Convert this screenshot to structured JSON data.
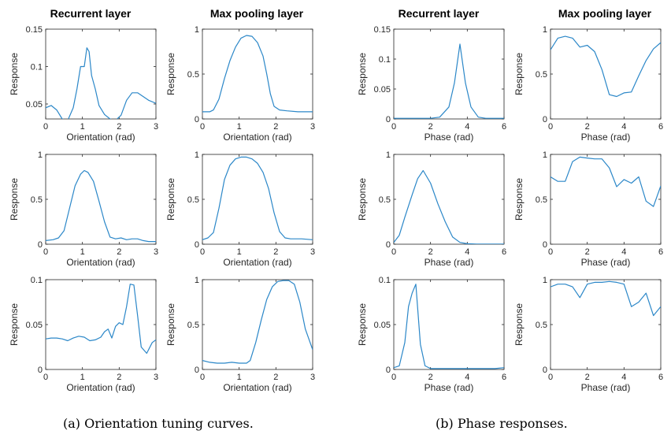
{
  "column_titles": [
    "Recurrent layer",
    "Max pooling layer",
    "Recurrent layer",
    "Max pooling layer"
  ],
  "captions": {
    "a": "(a) Orientation tuning curves.",
    "b": "(b) Phase responses."
  },
  "line_color": "#2b87c8",
  "chart_data": [
    {
      "id": "a-r1-c1",
      "type": "line",
      "xlabel": "Orientation (rad)",
      "ylabel": "Response",
      "xlim": [
        0,
        3
      ],
      "ylim": [
        0.03,
        0.15
      ],
      "xticks": [
        0,
        1,
        2,
        3
      ],
      "yticks": [
        0.05,
        0.1,
        0.15
      ],
      "yticklabels": [
        "0.05",
        "0.1",
        "0.15"
      ],
      "x": [
        0,
        0.15,
        0.3,
        0.45,
        0.6,
        0.75,
        0.85,
        0.95,
        1.05,
        1.12,
        1.18,
        1.25,
        1.35,
        1.45,
        1.6,
        1.75,
        1.9,
        2.05,
        2.2,
        2.35,
        2.5,
        2.65,
        2.8,
        3.0
      ],
      "y": [
        0.045,
        0.048,
        0.042,
        0.03,
        0.028,
        0.045,
        0.07,
        0.1,
        0.1,
        0.125,
        0.12,
        0.088,
        0.07,
        0.048,
        0.036,
        0.03,
        0.028,
        0.035,
        0.055,
        0.065,
        0.065,
        0.06,
        0.055,
        0.051
      ]
    },
    {
      "id": "a-r1-c2",
      "type": "line",
      "xlabel": "Orientation (rad)",
      "ylabel": "Response",
      "xlim": [
        0,
        3
      ],
      "ylim": [
        0,
        1
      ],
      "xticks": [
        0,
        1,
        2,
        3
      ],
      "yticks": [
        0,
        0.5,
        1
      ],
      "yticklabels": [
        "0",
        "0.5",
        "1"
      ],
      "x": [
        0,
        0.2,
        0.3,
        0.45,
        0.6,
        0.75,
        0.9,
        1.05,
        1.2,
        1.35,
        1.5,
        1.65,
        1.75,
        1.85,
        1.95,
        2.1,
        2.3,
        2.6,
        3.0
      ],
      "y": [
        0.08,
        0.08,
        0.1,
        0.22,
        0.45,
        0.65,
        0.8,
        0.9,
        0.93,
        0.92,
        0.85,
        0.7,
        0.5,
        0.28,
        0.14,
        0.1,
        0.09,
        0.08,
        0.08
      ]
    },
    {
      "id": "b-r1-c1",
      "type": "line",
      "xlabel": "Phase (rad)",
      "ylabel": "Response",
      "xlim": [
        0,
        6
      ],
      "ylim": [
        0,
        0.15
      ],
      "xticks": [
        0,
        2,
        4,
        6
      ],
      "yticks": [
        0,
        0.05,
        0.1,
        0.15
      ],
      "yticklabels": [
        "0",
        "0.05",
        "0.1",
        "0.15"
      ],
      "x": [
        0,
        0.5,
        1,
        1.5,
        2,
        2.5,
        3,
        3.3,
        3.6,
        3.9,
        4.2,
        4.6,
        5,
        5.5,
        6
      ],
      "y": [
        0.001,
        0.001,
        0.001,
        0.001,
        0.001,
        0.003,
        0.02,
        0.06,
        0.125,
        0.06,
        0.02,
        0.003,
        0.001,
        0.001,
        0.001
      ]
    },
    {
      "id": "b-r1-c2",
      "type": "line",
      "xlabel": "Phase (rad)",
      "ylabel": "Response",
      "xlim": [
        0,
        6
      ],
      "ylim": [
        0,
        1
      ],
      "xticks": [
        0,
        2,
        4,
        6
      ],
      "yticks": [
        0,
        0.5,
        1
      ],
      "yticklabels": [
        "0",
        "0.5",
        "1"
      ],
      "x": [
        0,
        0.4,
        0.8,
        1.2,
        1.6,
        2.0,
        2.4,
        2.8,
        3.2,
        3.6,
        4.0,
        4.4,
        4.8,
        5.2,
        5.6,
        6.0
      ],
      "y": [
        0.77,
        0.9,
        0.92,
        0.9,
        0.8,
        0.82,
        0.75,
        0.55,
        0.27,
        0.25,
        0.29,
        0.3,
        0.48,
        0.65,
        0.78,
        0.85
      ]
    },
    {
      "id": "a-r2-c1",
      "type": "line",
      "xlabel": "Orientation (rad)",
      "ylabel": "Response",
      "xlim": [
        0,
        3
      ],
      "ylim": [
        0,
        1
      ],
      "xticks": [
        0,
        1,
        2,
        3
      ],
      "yticks": [
        0,
        0.5,
        1
      ],
      "yticklabels": [
        "0",
        "0.5",
        "1"
      ],
      "x": [
        0,
        0.2,
        0.35,
        0.5,
        0.65,
        0.8,
        0.95,
        1.05,
        1.15,
        1.3,
        1.45,
        1.6,
        1.75,
        1.9,
        2.05,
        2.2,
        2.35,
        2.5,
        2.65,
        2.8,
        3.0
      ],
      "y": [
        0.04,
        0.05,
        0.07,
        0.15,
        0.4,
        0.65,
        0.78,
        0.82,
        0.8,
        0.7,
        0.48,
        0.25,
        0.08,
        0.06,
        0.07,
        0.05,
        0.06,
        0.06,
        0.04,
        0.03,
        0.03
      ]
    },
    {
      "id": "a-r2-c2",
      "type": "line",
      "xlabel": "Orientation (rad)",
      "ylabel": "Response",
      "xlim": [
        0,
        3
      ],
      "ylim": [
        0,
        1
      ],
      "xticks": [
        0,
        1,
        2,
        3
      ],
      "yticks": [
        0,
        0.5,
        1
      ],
      "yticklabels": [
        "0",
        "0.5",
        "1"
      ],
      "x": [
        0,
        0.15,
        0.3,
        0.45,
        0.6,
        0.75,
        0.9,
        1.05,
        1.2,
        1.35,
        1.5,
        1.65,
        1.8,
        1.95,
        2.1,
        2.25,
        2.4,
        2.7,
        3.0
      ],
      "y": [
        0.05,
        0.07,
        0.13,
        0.4,
        0.72,
        0.88,
        0.95,
        0.97,
        0.97,
        0.95,
        0.9,
        0.8,
        0.62,
        0.35,
        0.14,
        0.07,
        0.06,
        0.06,
        0.05
      ]
    },
    {
      "id": "b-r2-c1",
      "type": "line",
      "xlabel": "Phase (rad)",
      "ylabel": "Response",
      "xlim": [
        0,
        6
      ],
      "ylim": [
        0,
        1
      ],
      "xticks": [
        0,
        2,
        4,
        6
      ],
      "yticks": [
        0,
        0.5,
        1
      ],
      "yticklabels": [
        "0",
        "0.5",
        "1"
      ],
      "x": [
        0,
        0.3,
        0.6,
        1.0,
        1.3,
        1.6,
        2.0,
        2.4,
        2.8,
        3.2,
        3.6,
        4.0,
        4.5,
        5,
        5.5,
        6
      ],
      "y": [
        0.02,
        0.1,
        0.3,
        0.55,
        0.73,
        0.82,
        0.68,
        0.45,
        0.25,
        0.08,
        0.02,
        0.005,
        0.002,
        0.002,
        0.002,
        0.002
      ]
    },
    {
      "id": "b-r2-c2",
      "type": "line",
      "xlabel": "Phase (rad)",
      "ylabel": "Response",
      "xlim": [
        0,
        6
      ],
      "ylim": [
        0,
        1
      ],
      "xticks": [
        0,
        2,
        4,
        6
      ],
      "yticks": [
        0,
        0.5,
        1
      ],
      "yticklabels": [
        "0",
        "0.5",
        "1"
      ],
      "x": [
        0,
        0.4,
        0.8,
        1.2,
        1.6,
        2.0,
        2.4,
        2.8,
        3.2,
        3.6,
        4.0,
        4.4,
        4.8,
        5.2,
        5.6,
        6.0
      ],
      "y": [
        0.75,
        0.7,
        0.7,
        0.92,
        0.97,
        0.96,
        0.95,
        0.95,
        0.85,
        0.64,
        0.72,
        0.68,
        0.75,
        0.48,
        0.42,
        0.65
      ]
    },
    {
      "id": "a-r3-c1",
      "type": "line",
      "xlabel": "Orientation (rad)",
      "ylabel": "Response",
      "xlim": [
        0,
        3
      ],
      "ylim": [
        0,
        0.1
      ],
      "xticks": [
        0,
        1,
        2,
        3
      ],
      "yticks": [
        0,
        0.05,
        0.1
      ],
      "yticklabels": [
        "0",
        "0.05",
        "0.1"
      ],
      "x": [
        0,
        0.15,
        0.3,
        0.45,
        0.6,
        0.75,
        0.9,
        1.05,
        1.2,
        1.35,
        1.5,
        1.6,
        1.7,
        1.8,
        1.9,
        2.0,
        2.1,
        2.2,
        2.3,
        2.4,
        2.5,
        2.6,
        2.75,
        2.9,
        3.0
      ],
      "y": [
        0.034,
        0.035,
        0.035,
        0.034,
        0.032,
        0.035,
        0.037,
        0.036,
        0.032,
        0.033,
        0.036,
        0.042,
        0.045,
        0.035,
        0.048,
        0.052,
        0.05,
        0.07,
        0.095,
        0.094,
        0.06,
        0.025,
        0.018,
        0.03,
        0.033
      ]
    },
    {
      "id": "a-r3-c2",
      "type": "line",
      "xlabel": "Orientation (rad)",
      "ylabel": "Response",
      "xlim": [
        0,
        3
      ],
      "ylim": [
        0,
        1
      ],
      "xticks": [
        0,
        1,
        2,
        3
      ],
      "yticks": [
        0,
        0.5,
        1
      ],
      "yticklabels": [
        "0",
        "0.5",
        "1"
      ],
      "x": [
        0,
        0.2,
        0.4,
        0.6,
        0.8,
        1.0,
        1.2,
        1.3,
        1.45,
        1.6,
        1.75,
        1.9,
        2.05,
        2.2,
        2.35,
        2.5,
        2.65,
        2.8,
        3.0
      ],
      "y": [
        0.1,
        0.08,
        0.07,
        0.07,
        0.08,
        0.07,
        0.07,
        0.1,
        0.3,
        0.55,
        0.78,
        0.92,
        0.98,
        0.99,
        0.99,
        0.95,
        0.75,
        0.45,
        0.22
      ]
    },
    {
      "id": "b-r3-c1",
      "type": "line",
      "xlabel": "Phase (rad)",
      "ylabel": "Response",
      "xlim": [
        0,
        6
      ],
      "ylim": [
        0,
        0.1
      ],
      "xticks": [
        0,
        2,
        4,
        6
      ],
      "yticks": [
        0,
        0.05,
        0.1
      ],
      "yticklabels": [
        "0",
        "0.05",
        "0.1"
      ],
      "x": [
        0,
        0.3,
        0.6,
        0.8,
        1.0,
        1.2,
        1.45,
        1.7,
        2.0,
        2.5,
        3,
        3.5,
        4.0,
        4.5,
        5,
        5.5,
        6
      ],
      "y": [
        0.002,
        0.004,
        0.03,
        0.07,
        0.085,
        0.095,
        0.028,
        0.004,
        0.001,
        0.001,
        0.001,
        0.001,
        0.001,
        0.001,
        0.001,
        0.001,
        0.002
      ]
    },
    {
      "id": "b-r3-c2",
      "type": "line",
      "xlabel": "Phase (rad)",
      "ylabel": "Response",
      "xlim": [
        0,
        6
      ],
      "ylim": [
        0,
        1
      ],
      "xticks": [
        0,
        2,
        4,
        6
      ],
      "yticks": [
        0,
        0.5,
        1
      ],
      "yticklabels": [
        "0",
        "0.5",
        "1"
      ],
      "x": [
        0,
        0.4,
        0.8,
        1.2,
        1.6,
        2.0,
        2.4,
        2.8,
        3.2,
        3.6,
        4.0,
        4.4,
        4.8,
        5.2,
        5.6,
        6.0
      ],
      "y": [
        0.92,
        0.95,
        0.95,
        0.92,
        0.8,
        0.95,
        0.97,
        0.97,
        0.98,
        0.97,
        0.95,
        0.7,
        0.75,
        0.85,
        0.6,
        0.7
      ]
    }
  ]
}
